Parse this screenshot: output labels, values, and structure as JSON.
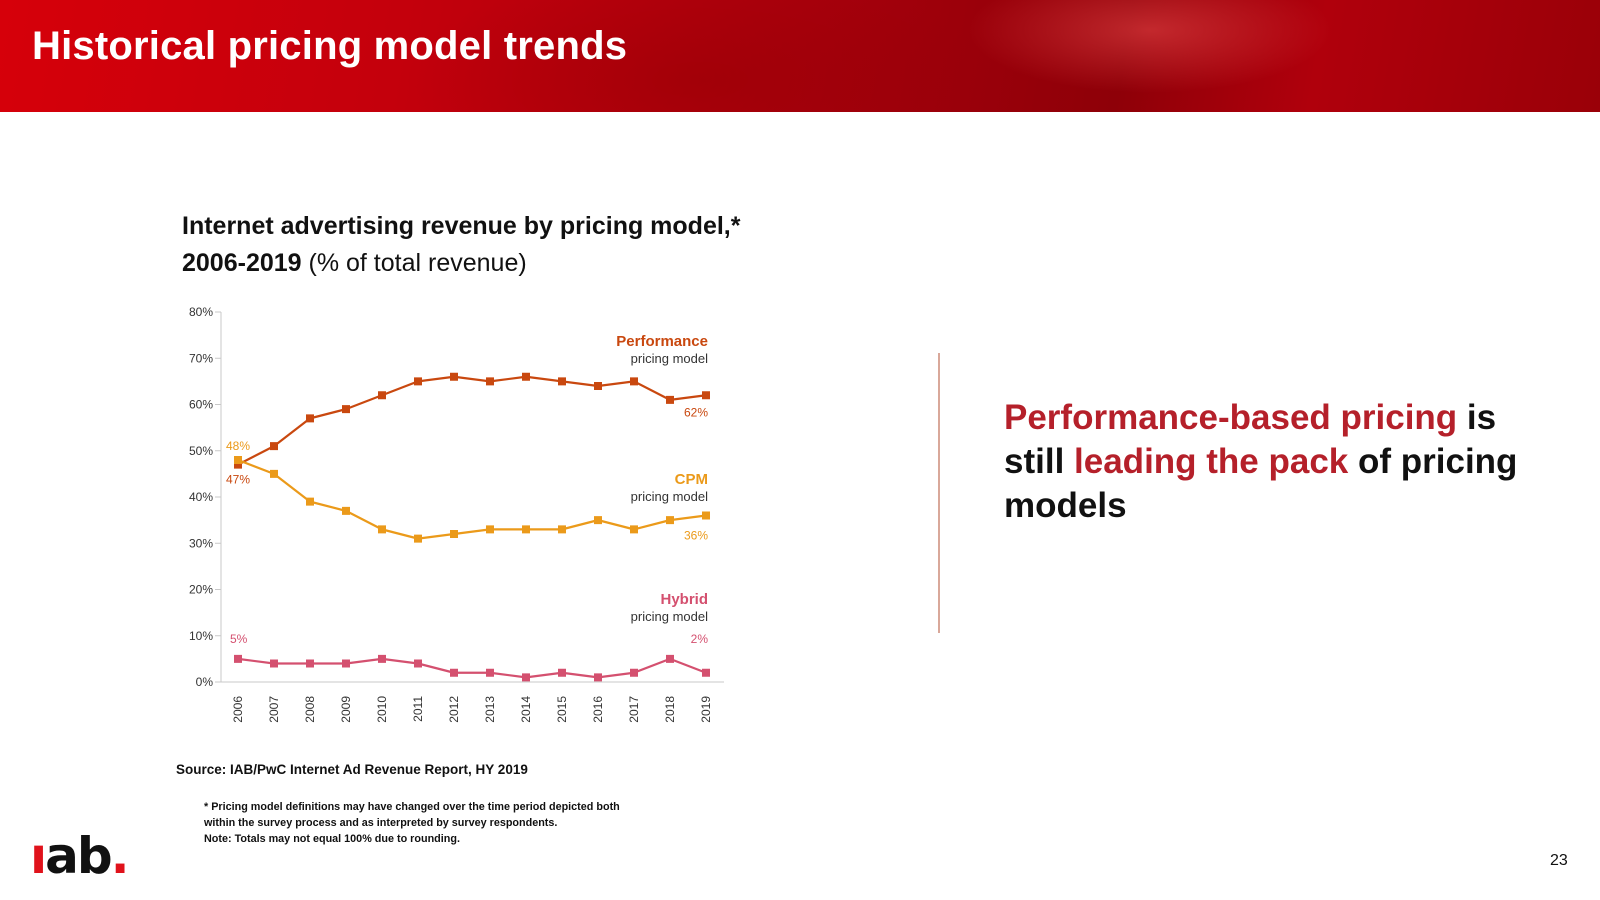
{
  "header": {
    "title": "Historical pricing model trends"
  },
  "chart_heading": {
    "line1": "Internet advertising revenue by pricing model,*",
    "line2_bold": "2006-2019",
    "line2_rest": " (% of total revenue)"
  },
  "chart_data": {
    "type": "line",
    "title": "Internet advertising revenue by pricing model,* 2006-2019 (% of total revenue)",
    "x": [
      "2006",
      "2007",
      "2008",
      "2009",
      "2010",
      "2011",
      "2012",
      "2013",
      "2014",
      "2015",
      "2016",
      "2017",
      "2018",
      "2019"
    ],
    "y_ticks": [
      "0%",
      "10%",
      "20%",
      "30%",
      "40%",
      "50%",
      "60%",
      "70%",
      "80%"
    ],
    "ylim": [
      0,
      80
    ],
    "xlabel": "",
    "ylabel": "",
    "grid": false,
    "series": [
      {
        "name": "Performance",
        "sublabel": "pricing model",
        "color": "#c9480f",
        "values": [
          47,
          51,
          57,
          59,
          62,
          65,
          66,
          65,
          66,
          65,
          64,
          65,
          61,
          62
        ],
        "start_label": "47%",
        "end_label": "62%"
      },
      {
        "name": "CPM",
        "sublabel": "pricing model",
        "color": "#eb9a1a",
        "values": [
          48,
          45,
          39,
          37,
          33,
          31,
          32,
          33,
          33,
          33,
          35,
          33,
          35,
          36
        ],
        "start_label": "48%",
        "end_label": "36%"
      },
      {
        "name": "Hybrid",
        "sublabel": "pricing model",
        "color": "#d4506f",
        "values": [
          5,
          4,
          4,
          4,
          5,
          4,
          2,
          2,
          1,
          2,
          1,
          2,
          5,
          2
        ],
        "start_label": "5%",
        "end_label": "2%"
      }
    ]
  },
  "source": "Source: IAB/PwC Internet Ad Revenue Report, HY 2019",
  "footnote": {
    "line1": "* Pricing model definitions may have changed over the time period depicted both",
    "line2": "within the survey process and as interpreted by survey respondents.",
    "line3": "Note: Totals may not equal 100% due to rounding."
  },
  "callout": {
    "part1": "Performance-based pricing",
    "part2": " is still ",
    "part3": "leading the pack",
    "part4": " of pricing models"
  },
  "logo": {
    "i": "ı",
    "rest": "ab",
    "dot": "."
  },
  "page_number": "23",
  "colors": {
    "accent_red": "#b5202a",
    "banner_red": "#c4000c"
  }
}
